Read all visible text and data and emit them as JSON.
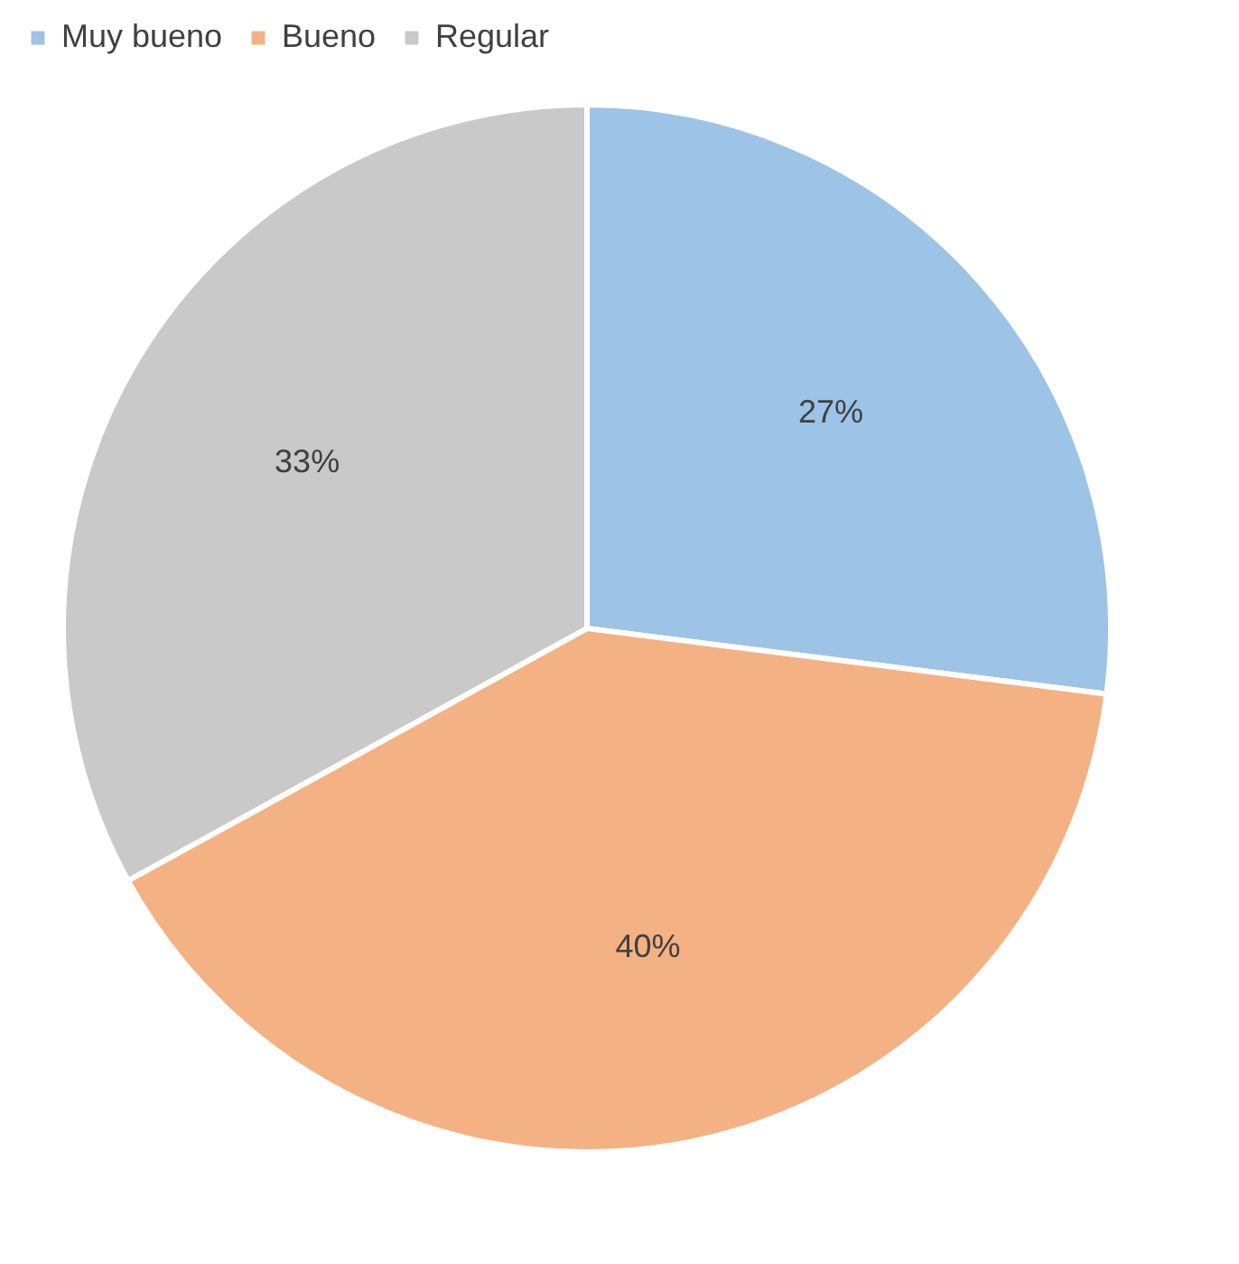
{
  "chart_data": {
    "type": "pie",
    "categories": [
      "Muy bueno",
      "Bueno",
      "Regular"
    ],
    "values": [
      27,
      40,
      33
    ],
    "colors": [
      "#9dc3e6",
      "#f4b183",
      "#c9c9c9"
    ],
    "value_labels": [
      "27%",
      "40%",
      "33%"
    ],
    "legend": "top"
  }
}
